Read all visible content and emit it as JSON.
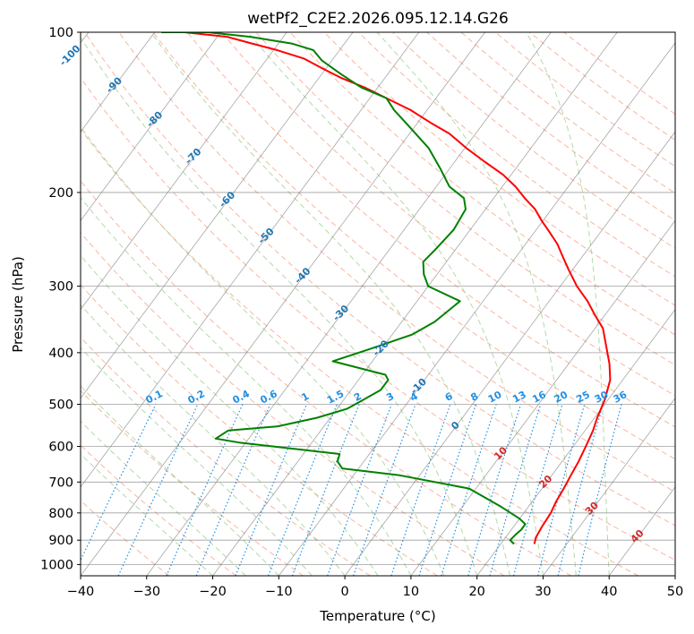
{
  "chart_data": {
    "type": "line",
    "title": "wetPf2_C2E2.2026.095.12.14.G26",
    "xlabel": "Temperature (°C)",
    "ylabel": "Pressure (hPa)",
    "xlim": [
      -40,
      50
    ],
    "ylim": [
      1050,
      100
    ],
    "y_scale": "log",
    "grid": true,
    "skew": "skew-T log-P",
    "x_ticks": [
      -40,
      -30,
      -20,
      -10,
      0,
      10,
      20,
      30,
      40,
      50
    ],
    "y_ticks": [
      100,
      200,
      300,
      400,
      500,
      600,
      700,
      800,
      900,
      1000
    ],
    "series": [
      {
        "color": "#ff0000",
        "x": [
          25.1,
          24.6,
          24.3,
          24.1,
          23.6,
          23.3,
          22.9,
          22.5,
          21.9,
          21.2,
          20.4,
          19.5,
          18.1,
          16.2,
          13.8,
          11.2,
          8.5,
          5.8,
          2.5,
          -0.5,
          -2.8,
          -5.2,
          -7.6,
          -10.2,
          -12.5,
          -15.3,
          -18.0,
          -21.3,
          -25.5,
          -29.8,
          -34.0,
          -38.0,
          -42.5,
          -47.5,
          -52.0,
          -56.5,
          -60.5,
          -64.5,
          -69.5,
          -74.0,
          -78.5,
          -85.5
        ],
        "y": [
          915,
          890,
          850,
          800,
          760,
          720,
          680,
          640,
          600,
          560,
          530,
          490,
          450,
          420,
          390,
          360,
          340,
          320,
          300,
          280,
          265,
          250,
          238,
          226,
          215,
          205,
          195,
          185,
          175,
          165,
          155,
          148,
          140,
          133,
          127,
          122,
          117,
          112,
          108,
          105,
          102,
          100
        ]
      },
      {
        "color": "#008000",
        "x": [
          22.0,
          21.0,
          21.2,
          21.5,
          21.5,
          20.0,
          16.0,
          9.0,
          -3.0,
          -12.5,
          -14.0,
          -14.5,
          -31.0,
          -35.0,
          -34.0,
          -27.0,
          -22.0,
          -18.5,
          -17.0,
          -15.5,
          -15.5,
          -16.5,
          -26.0,
          -22.0,
          -17.0,
          -15.0,
          -13.5,
          -20.0,
          -22.0,
          -23.5,
          -23.0,
          -22.5,
          -23.0,
          -24.5,
          -28.0,
          -31.5,
          -35.5,
          -41.0,
          -45.0,
          -47.5,
          -52.5,
          -57.0,
          -61.5,
          -64.0,
          -68.0,
          -75.0,
          -82.0,
          -89.0
        ],
        "y": [
          915,
          900,
          880,
          860,
          840,
          820,
          780,
          720,
          680,
          660,
          640,
          620,
          590,
          580,
          560,
          550,
          530,
          510,
          490,
          470,
          450,
          440,
          415,
          395,
          370,
          350,
          320,
          300,
          285,
          270,
          255,
          235,
          215,
          205,
          195,
          180,
          165,
          150,
          140,
          133,
          127,
          120,
          113,
          108,
          105,
          102,
          100,
          100
        ]
      }
    ],
    "dry_adiabat_labels": [
      "-100",
      "-90",
      "-80",
      "-70",
      "-60",
      "-50",
      "-40",
      "-30",
      "-20",
      "-10",
      "0",
      "10",
      "20",
      "30",
      "40"
    ],
    "mixing_ratio_labels": [
      "0.1",
      "0.2",
      "0.4",
      "0.6",
      "1",
      "1.5",
      "2",
      "3",
      "4",
      "6",
      "8",
      "10",
      "13",
      "16",
      "20",
      "25",
      "30",
      "36"
    ],
    "colors": {
      "temperature": "#ff0000",
      "dewpoint": "#008000",
      "dry_adiabat": "#f7a98f",
      "moist_adiabat": "#9acd8a",
      "mixing_ratio": "#1f8fe5",
      "isotherm": "#808080",
      "dry_label": "#1f77b4",
      "warm_label": "#d62728"
    }
  }
}
